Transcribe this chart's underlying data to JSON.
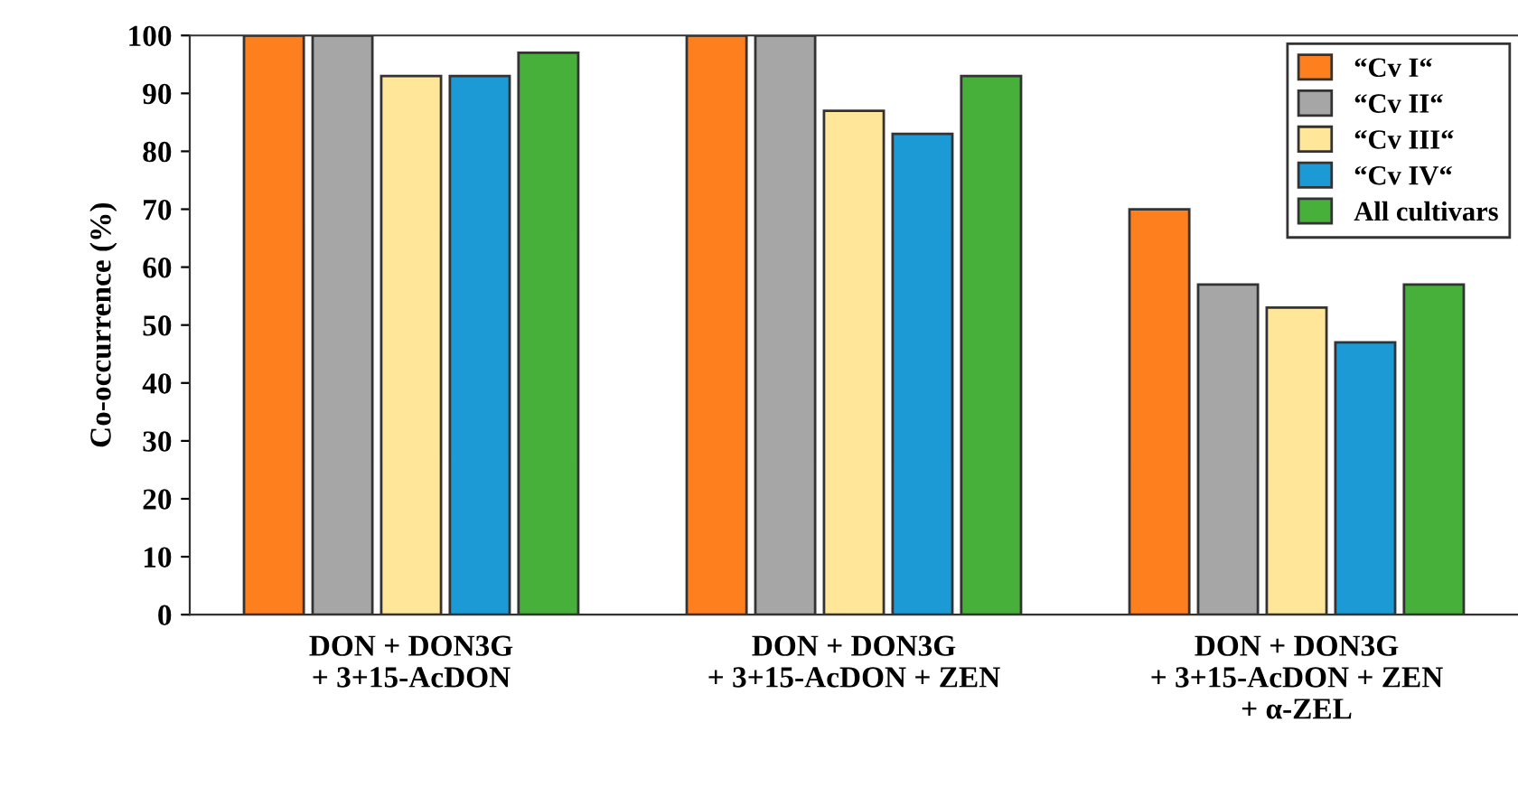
{
  "chart_data": {
    "type": "bar",
    "ylabel": "Co-occurrence (%)",
    "categories": [
      "DON + DON3G\n+ 3+15-AcDON",
      "DON + DON3G\n+ 3+15-AcDON + ZEN",
      "DON + DON3G\n+ 3+15-AcDON + ZEN\n+ α-ZEL"
    ],
    "series": [
      {
        "name": "“Cv I“",
        "color": "#fd7f1e",
        "values": [
          100,
          100,
          70
        ]
      },
      {
        "name": "“Cv II“",
        "color": "#a6a6a6",
        "values": [
          100,
          100,
          57
        ]
      },
      {
        "name": "“Cv III“",
        "color": "#ffe699",
        "values": [
          93,
          87,
          53
        ]
      },
      {
        "name": "“Cv IV“",
        "color": "#1c9ad6",
        "values": [
          93,
          83,
          47
        ]
      },
      {
        "name": "All cultivars",
        "color": "#47b03a",
        "values": [
          97,
          93,
          57
        ]
      }
    ],
    "ylim": [
      0,
      100
    ],
    "yticks": [
      0,
      10,
      20,
      30,
      40,
      50,
      60,
      70,
      80,
      90,
      100
    ],
    "grid": false,
    "legend": "upper right"
  }
}
